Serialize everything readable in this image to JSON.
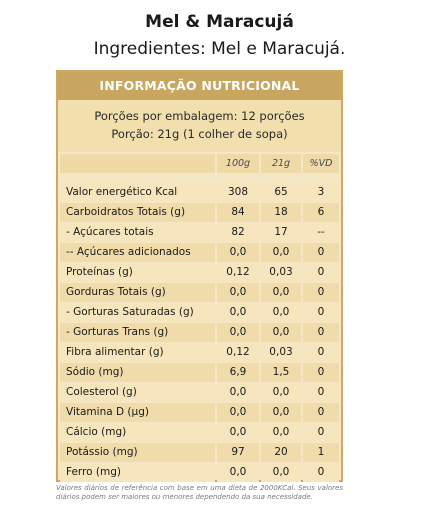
{
  "product": {
    "name": "Mel & Maracujá",
    "ingredients": "Ingredientes: Mel e Maracujá."
  },
  "panel": {
    "header": "INFORMAÇÃO NUTRICIONAL",
    "portions": "Porções por embalagem: 12 porções",
    "portion_size": "Porção: 21g (1 colher de sopa)",
    "columns": [
      "100g",
      "21g",
      "%VD"
    ],
    "rows": [
      {
        "name": "Valor energético Kcal",
        "v100": "308",
        "v21": "65",
        "vd": "3"
      },
      {
        "name": "Carboidratos Totais (g)",
        "v100": "84",
        "v21": "18",
        "vd": "6"
      },
      {
        "name": "- Açúcares totais",
        "v100": "82",
        "v21": "17",
        "vd": "--"
      },
      {
        "name": "-- Açúcares adicionados",
        "v100": "0,0",
        "v21": "0,0",
        "vd": "0"
      },
      {
        "name": "Proteínas (g)",
        "v100": "0,12",
        "v21": "0,03",
        "vd": "0"
      },
      {
        "name": "Gorduras Totais (g)",
        "v100": "0,0",
        "v21": "0,0",
        "vd": "0"
      },
      {
        "name": "- Gorturas Saturadas (g)",
        "v100": "0,0",
        "v21": "0,0",
        "vd": "0"
      },
      {
        "name": "- Gorturas Trans (g)",
        "v100": "0,0",
        "v21": "0,0",
        "vd": "0"
      },
      {
        "name": "Fibra alimentar (g)",
        "v100": "0,12",
        "v21": "0,03",
        "vd": "0"
      },
      {
        "name": "Sódio (mg)",
        "v100": "6,9",
        "v21": "1,5",
        "vd": "0"
      },
      {
        "name": "Colesterol (g)",
        "v100": "0,0",
        "v21": "0,0",
        "vd": "0"
      },
      {
        "name": "Vitamina D (µg)",
        "v100": "0,0",
        "v21": "0,0",
        "vd": "0"
      },
      {
        "name": "Cálcio (mg)",
        "v100": "0,0",
        "v21": "0,0",
        "vd": "0"
      },
      {
        "name": "Potássio (mg)",
        "v100": "97",
        "v21": "20",
        "vd": "1"
      },
      {
        "name": "Ferro (mg)",
        "v100": "0,0",
        "v21": "0,0",
        "vd": "0"
      }
    ]
  },
  "footnote": "Valores diários de referência com base em uma dieta de 2000KCal. Seus valores diários podem ser maiores ou menores dependendo da sua necessidade.",
  "colors": {
    "header_bg": "#c9a660",
    "panel_bg": "#f5e7c4",
    "border": "#cfa964"
  }
}
